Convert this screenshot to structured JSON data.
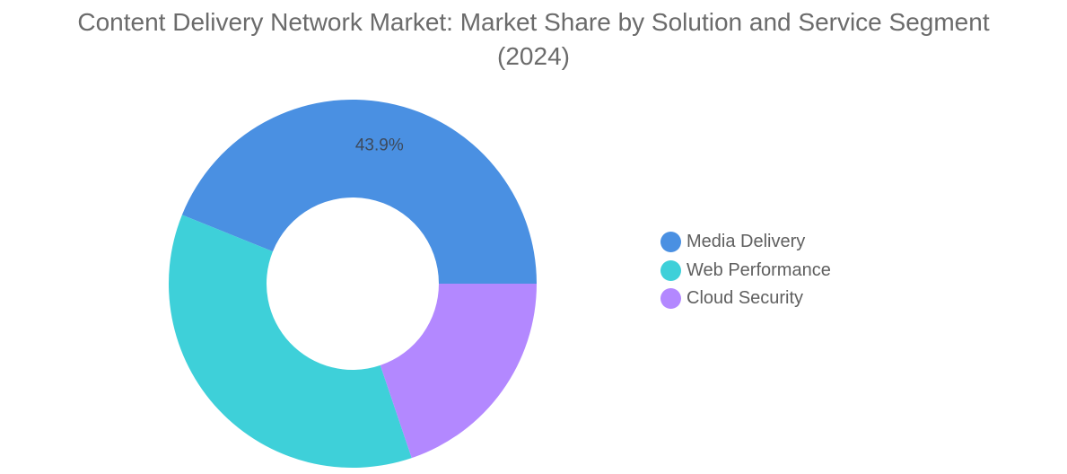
{
  "chart_data": {
    "type": "pie",
    "donut": true,
    "title": "Content Delivery Network Market: Market Share by Solution and Service Segment (2024)",
    "categories": [
      "Media Delivery",
      "Web Performance",
      "Cloud Security"
    ],
    "values": [
      43.9,
      36.3,
      19.8
    ],
    "colors": [
      "#4a90e2",
      "#3ed0d9",
      "#b388ff"
    ],
    "data_labels": [
      "43.9%",
      "",
      ""
    ],
    "legend_position": "right"
  }
}
